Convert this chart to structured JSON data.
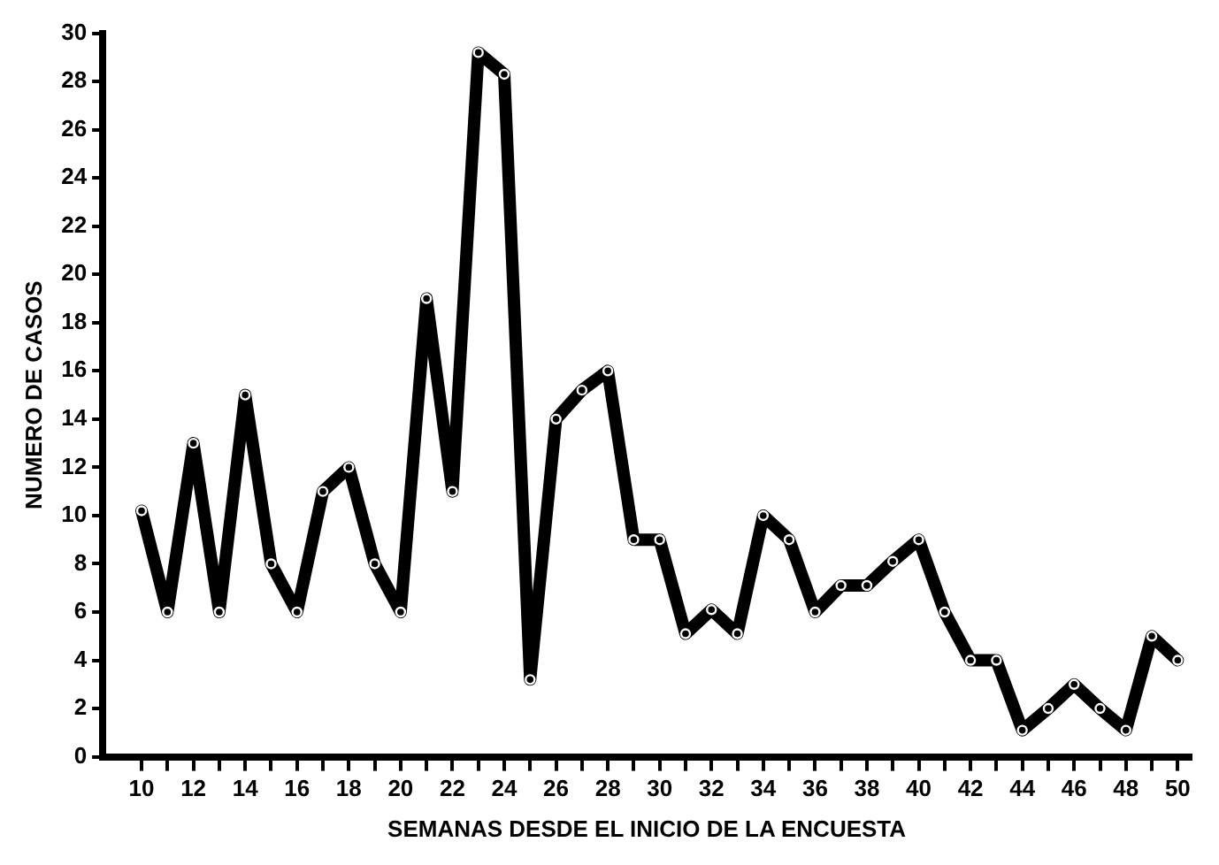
{
  "chart_data": {
    "type": "line",
    "xlabel": "SEMANAS DESDE EL INICIO DE LA ENCUESTA",
    "ylabel": "NUMERO DE CASOS",
    "x": [
      10,
      11,
      12,
      13,
      14,
      15,
      16,
      17,
      18,
      19,
      20,
      21,
      22,
      23,
      24,
      25,
      26,
      27,
      28,
      29,
      30,
      31,
      32,
      33,
      34,
      35,
      36,
      37,
      38,
      39,
      40,
      41,
      42,
      43,
      44,
      45,
      46,
      47,
      48,
      49,
      50
    ],
    "series": [
      {
        "color": "#000000",
        "values": [
          10.2,
          6,
          13,
          6,
          15,
          8,
          6,
          11,
          12,
          8,
          6,
          19,
          11,
          29.2,
          28.3,
          3.2,
          14,
          15.2,
          16,
          9,
          9,
          5.1,
          6.1,
          5.1,
          10,
          9,
          6,
          7.1,
          7.1,
          8.1,
          9,
          6,
          4,
          4,
          1.1,
          2,
          3,
          2,
          1.1,
          5,
          4
        ]
      }
    ],
    "xlim": [
      8.5,
      50.5
    ],
    "xticks": [
      10,
      {
        "value": 11,
        "label": null
      },
      12,
      {
        "value": 13,
        "label": null
      },
      14,
      {
        "value": 15,
        "label": null
      },
      16,
      {
        "value": 17,
        "label": null
      },
      18,
      {
        "value": 19,
        "label": null
      },
      20,
      {
        "value": 21,
        "label": null
      },
      22,
      {
        "value": 23,
        "label": null
      },
      24,
      {
        "value": 25,
        "label": null
      },
      26,
      {
        "value": 27,
        "label": null
      },
      28,
      {
        "value": 29,
        "label": null
      },
      30,
      {
        "value": 31,
        "label": null
      },
      32,
      {
        "value": 33,
        "label": null
      },
      34,
      {
        "value": 35,
        "label": null
      },
      36,
      {
        "value": 37,
        "label": null
      },
      38,
      {
        "value": 39,
        "label": null
      },
      40,
      {
        "value": 41,
        "label": null
      },
      42,
      {
        "value": 43,
        "label": null
      },
      44,
      {
        "value": 45,
        "label": null
      },
      46,
      {
        "value": 47,
        "label": null
      },
      48,
      {
        "value": 49,
        "label": null
      },
      50
    ],
    "ylim": [
      0,
      30
    ],
    "yticks": [
      0,
      2,
      4,
      6,
      8,
      10,
      12,
      14,
      16,
      18,
      20,
      22,
      24,
      26,
      28,
      30
    ],
    "grid": false,
    "legend": false,
    "marker": "circle",
    "line_style": "solid"
  }
}
